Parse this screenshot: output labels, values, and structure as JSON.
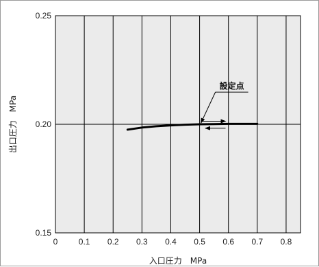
{
  "chart_data": {
    "type": "line",
    "title": "",
    "xlabel": "入口圧力　MPa",
    "ylabel": "出口圧力　MPa",
    "xlim": [
      0,
      0.85
    ],
    "ylim": [
      0.15,
      0.25
    ],
    "x_ticks": [
      "0",
      "0.1",
      "0.2",
      "0.3",
      "0.4",
      "0.5",
      "0.6",
      "0.7",
      "0.8"
    ],
    "y_ticks": [
      "0.15",
      "0.20",
      "0.25"
    ],
    "grid": "vertical lines at 0.1 intervals",
    "reference_line_y": 0.2,
    "series": [
      {
        "x": [
          0.25,
          0.3,
          0.35,
          0.4,
          0.45,
          0.5,
          0.55,
          0.6,
          0.65,
          0.7
        ],
        "y": [
          0.1975,
          0.1985,
          0.1991,
          0.1995,
          0.1998,
          0.2,
          0.2001,
          0.2002,
          0.2002,
          0.2002
        ]
      }
    ],
    "set_point": {
      "x": 0.5,
      "y": 0.2
    },
    "annotations": [
      {
        "text": "設定点"
      }
    ],
    "direction_arrows": [
      {
        "from": 0.51,
        "to": 0.59,
        "y": 0.2014,
        "direction": "right"
      },
      {
        "from": 0.59,
        "to": 0.52,
        "y": 0.1982,
        "direction": "left"
      }
    ]
  },
  "colors": {
    "plot_background": "#ebebeb",
    "grid": "#000000",
    "curve": "#000000",
    "text": "#222222"
  }
}
